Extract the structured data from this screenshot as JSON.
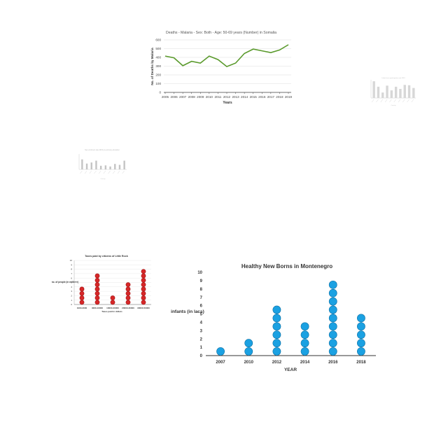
{
  "chart_data": [
    {
      "type": "line",
      "title": "Deaths - Malaria - Sex: Both - Age: 50-69 years (Number) in Somalia",
      "xlabel": "Years",
      "ylabel": "No. of Deaths by Malaria",
      "x": [
        "2005",
        "2006",
        "2007",
        "2008",
        "2009",
        "2010",
        "2011",
        "2012",
        "2013",
        "2014",
        "2015",
        "2016",
        "2017",
        "2018",
        "2019"
      ],
      "series": [
        {
          "values": [
            415,
            395,
            305,
            355,
            335,
            415,
            375,
            295,
            335,
            445,
            495,
            475,
            455,
            485,
            545
          ],
          "color": "#5a9a2c"
        }
      ],
      "ylim": [
        0,
        600
      ],
      "yticks": [
        "0",
        "100",
        "200",
        "300",
        "400",
        "500",
        "600"
      ],
      "grid": true
    },
    {
      "type": "bar",
      "title": "Labor force participation rate 2015",
      "xlabel": "Country",
      "values": [
        0.92,
        0.62,
        0.3,
        0.68,
        0.42,
        0.62,
        0.5,
        0.72,
        0.7,
        0.55
      ],
      "color": "#bdbdbd"
    },
    {
      "type": "bar",
      "title": "Net enrolment rate 2015 pre-primary education",
      "xlabel": "Country",
      "values": [
        0.55,
        0.32,
        0.38,
        0.48,
        0.2,
        0.22,
        0.16,
        0.3,
        0.25,
        0.48
      ],
      "color": "#9e9e9e"
    },
    {
      "type": "scatter",
      "title": "Taxes paid by citizens of Little Rock",
      "xlabel": "Taxes paid in dollars",
      "ylabel": "no. of people (in millions)",
      "categories": [
        "1000-3000",
        "3000-10000",
        "10000-20000",
        "20000-30000",
        "30000-50000"
      ],
      "values": [
        4,
        7,
        2,
        5,
        8
      ],
      "yticks": [
        "0",
        "1",
        "2",
        "3",
        "4",
        "5",
        "6",
        "7",
        "8",
        "9",
        "10"
      ],
      "ylim": [
        0,
        10
      ],
      "color": "#d62728"
    },
    {
      "type": "scatter",
      "title": "Healthy New Borns in Montenegro",
      "xlabel": "YEAR",
      "ylabel": "infants (in lacs)",
      "categories": [
        "2007",
        "2010",
        "2012",
        "2014",
        "2016",
        "2018"
      ],
      "values": [
        1,
        2,
        6,
        4,
        9,
        5
      ],
      "yticks": [
        "0",
        "1",
        "2",
        "3",
        "4",
        "5",
        "6",
        "7",
        "8",
        "9",
        "10"
      ],
      "ylim": [
        0,
        10
      ],
      "color": "#1ba1e2"
    }
  ]
}
